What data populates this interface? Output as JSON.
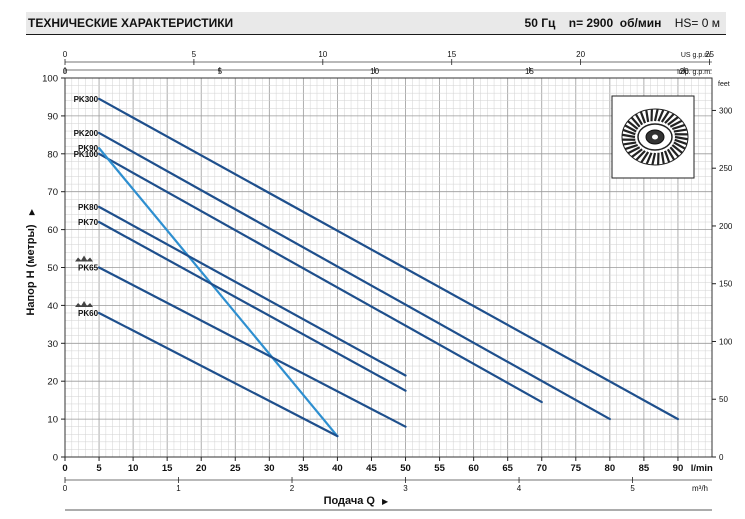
{
  "header": {
    "title": "ТЕХНИЧЕСКИЕ ХАРАКТЕРИСТИКИ",
    "frequency": "50 Гц",
    "speed": "n= 2900  об/мин",
    "hs": "HS= 0 м"
  },
  "axes": {
    "ylabel": "Напор Н (метры)",
    "xlabel": "Подача Q",
    "x_unit_lmin": "l/min",
    "x_unit_m3h": "m³/h",
    "top_unit_us": "US g.p.m.",
    "top_unit_imp": "Imp. g.p.m.",
    "right_unit": "feet",
    "arrow": "▶"
  },
  "chart_data": {
    "type": "line",
    "title": "",
    "xlabel": "Подача Q",
    "ylabel": "Напор Н (метры)",
    "xlim": [
      0,
      95
    ],
    "ylim": [
      0,
      100
    ],
    "grid": true,
    "x_ticks_lmin": [
      0,
      5,
      10,
      15,
      20,
      25,
      30,
      35,
      40,
      45,
      50,
      55,
      60,
      65,
      70,
      75,
      80,
      85,
      90
    ],
    "y_ticks_m": [
      0,
      10,
      20,
      30,
      40,
      50,
      60,
      70,
      80,
      90,
      100
    ],
    "x_ticks_m3h": [
      0,
      1,
      2,
      3,
      4,
      5
    ],
    "top_ticks_us_gpm": [
      0,
      5,
      10,
      15,
      20,
      25
    ],
    "top_ticks_imp_gpm": [
      0,
      5,
      10,
      15,
      20
    ],
    "right_ticks_feet": [
      0,
      50,
      100,
      150,
      200,
      250,
      300
    ],
    "series": [
      {
        "name": "PK300",
        "color": "#1e4f8c",
        "x": [
          5,
          90
        ],
        "y": [
          94.5,
          10
        ]
      },
      {
        "name": "PK200",
        "color": "#1e4f8c",
        "x": [
          5,
          80
        ],
        "y": [
          85.5,
          10
        ]
      },
      {
        "name": "PK100",
        "color": "#1e4f8c",
        "x": [
          5,
          70
        ],
        "y": [
          80,
          14.5
        ]
      },
      {
        "name": "PK90",
        "color": "#2e8fd0",
        "x": [
          5,
          40
        ],
        "y": [
          81.5,
          5.5
        ]
      },
      {
        "name": "PK80",
        "color": "#1e4f8c",
        "x": [
          5,
          50
        ],
        "y": [
          66,
          21.5
        ]
      },
      {
        "name": "PK70",
        "color": "#1e4f8c",
        "x": [
          5,
          50
        ],
        "y": [
          62,
          17.5
        ]
      },
      {
        "name": "PK65",
        "color": "#1e4f8c",
        "x": [
          5,
          50
        ],
        "y": [
          50,
          8
        ]
      },
      {
        "name": "PK60",
        "color": "#1e4f8c",
        "x": [
          5,
          40
        ],
        "y": [
          38,
          5.5
        ]
      }
    ]
  }
}
